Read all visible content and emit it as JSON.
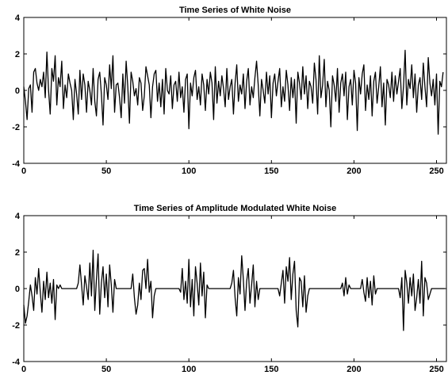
{
  "chart_data": [
    {
      "type": "line",
      "title": "Time Series of White Noise",
      "xlabel": "",
      "ylabel": "",
      "xlim": [
        0,
        256
      ],
      "ylim": [
        -4,
        4
      ],
      "xticks": [
        0,
        50,
        100,
        150,
        200,
        250
      ],
      "yticks": [
        -4,
        -2,
        0,
        2,
        4
      ],
      "grid": false,
      "series": [
        {
          "color": "#000000",
          "x_start": 0,
          "x_step": 1,
          "values": [
            0.2,
            -0.6,
            -1.6,
            0.1,
            0.3,
            -1.2,
            1.0,
            1.2,
            0.4,
            0.0,
            0.6,
            0.2,
            1.0,
            -0.4,
            2.1,
            0.0,
            -1.3,
            1.2,
            0.5,
            1.9,
            -0.8,
            0.7,
            0.2,
            1.6,
            -1.0,
            0.3,
            -0.4,
            0.9,
            0.4,
            0.0,
            -1.6,
            0.6,
            -0.2,
            -1.3,
            1.1,
            -0.5,
            0.9,
            0.3,
            -1.2,
            0.5,
            0.0,
            -0.8,
            1.2,
            -0.6,
            -1.4,
            0.6,
            1.0,
            -0.2,
            -1.9,
            0.7,
            0.3,
            -0.5,
            1.4,
            0.1,
            1.9,
            -1.2,
            0.3,
            0.4,
            -0.4,
            -1.5,
            0.9,
            -0.7,
            1.6,
            0.2,
            -1.8,
            1.0,
            0.5,
            -0.3,
            0.1,
            -0.8,
            0.7,
            0.4,
            -1.1,
            -0.3,
            1.3,
            0.8,
            0.3,
            -1.5,
            0.2,
            0.9,
            1.1,
            -0.6,
            0.4,
            -0.9,
            0.6,
            -1.3,
            1.2,
            0.0,
            -0.2,
            0.8,
            -1.0,
            0.3,
            0.5,
            -0.6,
            1.0,
            -0.4,
            0.2,
            -1.2,
            0.6,
            0.9,
            -2.1,
            0.4,
            -0.3,
            0.7,
            1.1,
            -0.5,
            0.2,
            -0.8,
            0.9,
            0.3,
            -1.1,
            0.6,
            -0.2,
            1.0,
            0.4,
            -1.6,
            1.3,
            -0.7,
            0.5,
            -0.3,
            0.8,
            0.1,
            -0.9,
            1.2,
            -0.5,
            0.2,
            0.6,
            -1.3,
            0.4,
            1.4,
            -0.6,
            0.3,
            -0.2,
            0.9,
            -1.0,
            0.5,
            1.2,
            -0.8,
            0.2,
            -0.4,
            0.7,
            1.6,
            0.3,
            -1.4,
            0.6,
            0.0,
            -0.7,
            1.0,
            -0.2,
            0.8,
            -1.5,
            0.4,
            0.9,
            -0.3,
            0.5,
            1.2,
            -0.9,
            0.2,
            -0.6,
            1.1,
            0.3,
            -1.1,
            0.7,
            -0.4,
            0.6,
            -1.8,
            1.0,
            0.4,
            -0.5,
            1.3,
            -0.2,
            0.8,
            -1.0,
            0.5,
            0.2,
            -0.7,
            1.5,
            0.6,
            -1.3,
            1.9,
            -0.4,
            0.3,
            1.7,
            -0.9,
            0.5,
            0.0,
            -2.0,
            0.8,
            0.3,
            -0.6,
            1.2,
            -1.2,
            0.4,
            0.9,
            -0.3,
            1.0,
            -1.6,
            0.2,
            0.6,
            -0.8,
            1.1,
            0.4,
            -2.2,
            0.7,
            -0.2,
            0.9,
            1.4,
            -1.1,
            0.3,
            -0.5,
            0.8,
            -1.4,
            0.5,
            1.0,
            -0.7,
            0.2,
            1.3,
            -0.9,
            0.4,
            -1.9,
            0.6,
            0.3,
            -0.4,
            1.0,
            -0.6,
            0.8,
            -0.2,
            0.5,
            1.2,
            -1.0,
            0.2,
            2.2,
            -0.8,
            0.6,
            0.1,
            1.4,
            -0.4,
            0.9,
            -1.2,
            0.3,
            0.7,
            -0.5,
            1.5,
            0.2,
            -0.9,
            1.8,
            0.4,
            -0.3,
            0.6,
            -0.8,
            0.9,
            -2.4,
            0.5,
            0.2,
            1.0
          ]
        }
      ]
    },
    {
      "type": "line",
      "title": "Time Series of Amplitude Modulated White Noise",
      "xlabel": "",
      "ylabel": "",
      "xlim": [
        0,
        256
      ],
      "ylim": [
        -4,
        4
      ],
      "xticks": [
        0,
        50,
        100,
        150,
        200,
        250
      ],
      "yticks": [
        -4,
        -2,
        0,
        2,
        4
      ],
      "grid": false,
      "series": [
        {
          "color": "#000000",
          "x_start": 0,
          "x_step": 1,
          "values": [
            -0.9,
            -1.9,
            -1.5,
            -0.7,
            0.2,
            -0.4,
            -1.2,
            0.6,
            -0.3,
            1.1,
            -0.2,
            -1.3,
            0.4,
            -0.6,
            0.9,
            -0.5,
            0.3,
            -0.8,
            0.5,
            -1.7,
            0.2,
            0.0,
            0.2,
            0.0,
            0.0,
            0.0,
            0.0,
            0.0,
            0.0,
            0.0,
            0.0,
            0.0,
            0.0,
            0.3,
            1.3,
            0.2,
            -0.9,
            0.7,
            0.1,
            -0.6,
            1.4,
            -0.4,
            2.1,
            -1.2,
            0.5,
            1.9,
            -1.4,
            0.3,
            1.2,
            -0.5,
            0.8,
            -1.0,
            1.3,
            0.2,
            -1.3,
            0.5,
            0.0,
            0.0,
            0.0,
            0.0,
            0.0,
            0.0,
            0.0,
            0.0,
            0.0,
            0.0,
            0.8,
            -0.5,
            -1.4,
            -0.9,
            0.3,
            -0.6,
            1.0,
            1.1,
            0.0,
            1.6,
            -0.2,
            0.4,
            -1.6,
            -0.4,
            0.0,
            0.0,
            0.0,
            0.0,
            0.0,
            0.0,
            0.0,
            0.0,
            0.0,
            0.0,
            0.0,
            0.0,
            0.0,
            0.0,
            0.0,
            -0.2,
            1.1,
            -0.6,
            0.4,
            -0.8,
            1.6,
            -1.0,
            0.5,
            -1.5,
            1.2,
            0.3,
            -0.9,
            1.4,
            -0.4,
            0.9,
            -1.6,
            0.2,
            0.0,
            0.0,
            0.0,
            0.0,
            0.0,
            0.0,
            0.0,
            0.0,
            0.0,
            0.0,
            0.0,
            0.0,
            0.0,
            0.0,
            0.3,
            1.0,
            -0.5,
            -1.5,
            0.6,
            -0.3,
            1.8,
            0.5,
            -1.2,
            0.4,
            1.1,
            -0.8,
            0.2,
            1.3,
            -1.0,
            0.4,
            -0.6,
            0.0,
            0.0,
            0.0,
            0.0,
            0.0,
            0.0,
            0.0,
            0.0,
            0.0,
            0.0,
            0.0,
            0.0,
            -0.4,
            0.3,
            1.0,
            -0.8,
            1.2,
            0.4,
            1.7,
            -0.6,
            0.8,
            1.5,
            -1.2,
            -2.1,
            0.6,
            0.4,
            -1.0,
            0.7,
            -1.3,
            -0.4,
            0.0,
            0.0,
            0.0,
            0.0,
            0.0,
            0.0,
            0.0,
            0.0,
            0.0,
            0.0,
            0.0,
            0.0,
            0.0,
            0.0,
            0.0,
            0.0,
            0.0,
            0.0,
            0.0,
            0.0,
            0.3,
            -0.4,
            0.6,
            -0.3,
            0.2,
            0.0,
            0.0,
            0.0,
            0.0,
            0.0,
            0.0,
            0.0,
            0.5,
            -0.2,
            -0.7,
            0.6,
            -0.5,
            0.4,
            -0.9,
            0.7,
            -0.3,
            0.0,
            0.0,
            0.0,
            0.0,
            0.0,
            0.0,
            0.0,
            0.0,
            0.0,
            0.0,
            0.0,
            0.0,
            0.0,
            0.0,
            -0.5,
            0.6,
            -2.3,
            1.0,
            0.3,
            -0.8,
            0.6,
            -0.4,
            0.8,
            -1.2,
            -0.5,
            0.5,
            -0.8,
            1.5,
            -1.5,
            0.6,
            0.3,
            -0.6,
            -0.3,
            0.0,
            0.0,
            0.0,
            0.0,
            0.0,
            0.0,
            0.0,
            0.0,
            0.0
          ]
        }
      ]
    }
  ]
}
